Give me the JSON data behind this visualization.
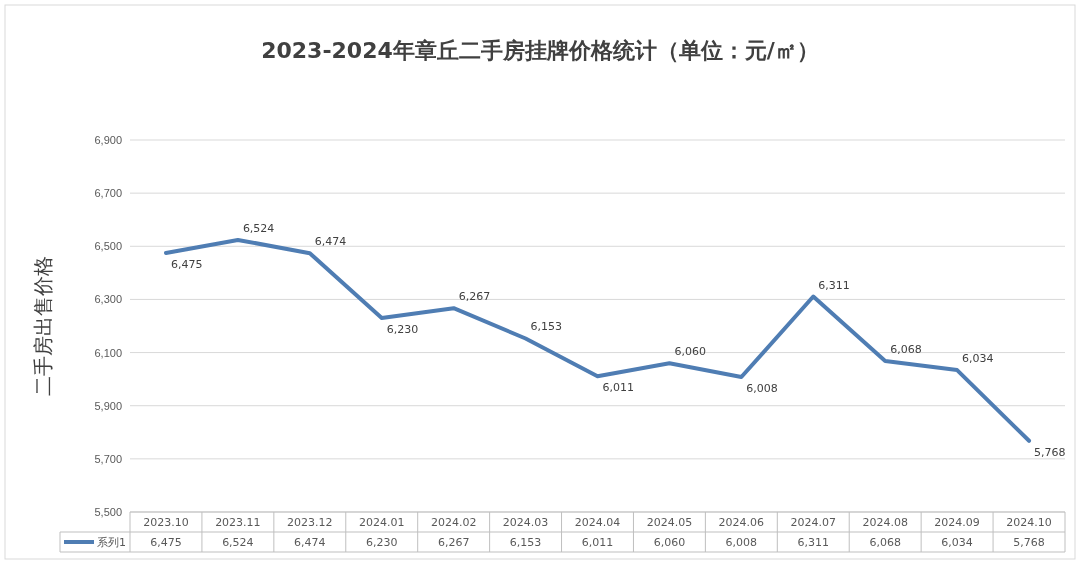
{
  "chart_data": {
    "type": "line",
    "title": "2023-2024年章丘二手房挂牌价格统计（单位：元/㎡）",
    "ylabel": "二手房出售价格",
    "categories": [
      "2023.10",
      "2023.11",
      "2023.12",
      "2024.01",
      "2024.02",
      "2024.03",
      "2024.04",
      "2024.05",
      "2024.06",
      "2024.07",
      "2024.08",
      "2024.09",
      "2024.10"
    ],
    "series": [
      {
        "name": "系列1",
        "color": "#4f7db3",
        "values": [
          6475,
          6524,
          6474,
          6230,
          6267,
          6153,
          6011,
          6060,
          6008,
          6311,
          6068,
          6034,
          5768
        ],
        "value_labels": [
          "6,475",
          "6,524",
          "6,474",
          "6,230",
          "6,267",
          "6,153",
          "6,011",
          "6,060",
          "6,008",
          "6,311",
          "6,068",
          "6,034",
          "5,768"
        ]
      }
    ],
    "ylim": [
      5500,
      6900
    ],
    "yticks": [
      {
        "value": 5500,
        "label": "5,500"
      },
      {
        "value": 5700,
        "label": "5,700"
      },
      {
        "value": 5900,
        "label": "5,900"
      },
      {
        "value": 6100,
        "label": "6,100"
      },
      {
        "value": 6300,
        "label": "6,300"
      },
      {
        "value": 6500,
        "label": "6,500"
      },
      {
        "value": 6700,
        "label": "6,700"
      },
      {
        "value": 6900,
        "label": "6,900"
      }
    ],
    "grid": "y",
    "legend": "bottom",
    "marker": "none",
    "line_style": "solid"
  }
}
